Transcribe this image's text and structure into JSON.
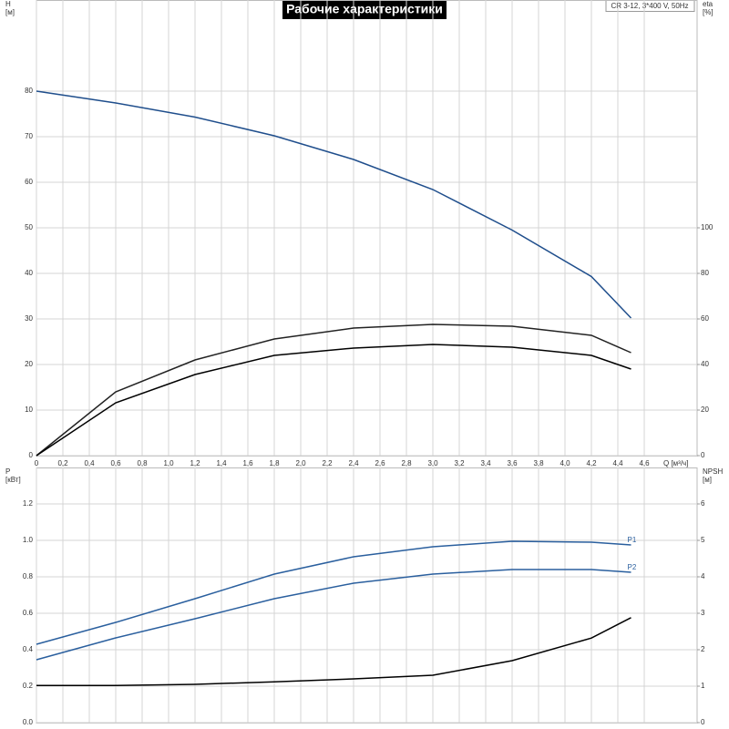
{
  "title": "Рабочие характеристики",
  "info": "CR 3-12, 3*400 V, 50Hz",
  "chart_data": [
    {
      "type": "line",
      "x_label": "Q [м³/ч]",
      "y_label": "H",
      "y_unit": "[м]",
      "y2_label": "eta",
      "y2_unit": "[%]",
      "x": [
        0,
        0.6,
        1.2,
        1.8,
        2.4,
        3.0,
        3.6,
        4.2,
        4.5
      ],
      "xlim": [
        0,
        5
      ],
      "xticks": [
        0,
        {
          "value": 0.2,
          "label": "0,2"
        },
        {
          "value": 0.4,
          "label": "0,4"
        },
        {
          "value": 0.6,
          "label": "0,6"
        },
        {
          "value": 0.8,
          "label": "0,8"
        },
        {
          "value": 1.0,
          "label": "1,0"
        },
        {
          "value": 1.2,
          "label": "1,2"
        },
        {
          "value": 1.4,
          "label": "1,4"
        },
        {
          "value": 1.6,
          "label": "1,6"
        },
        {
          "value": 1.8,
          "label": "1,8"
        },
        {
          "value": 2.0,
          "label": "2,0"
        },
        {
          "value": 2.2,
          "label": "2,2"
        },
        {
          "value": 2.4,
          "label": "2,4"
        },
        {
          "value": 2.6,
          "label": "2,6"
        },
        {
          "value": 2.8,
          "label": "2,8"
        },
        {
          "value": 3.0,
          "label": "3,0"
        },
        {
          "value": 3.2,
          "label": "3,2"
        },
        {
          "value": 3.4,
          "label": "3,4"
        },
        {
          "value": 3.6,
          "label": "3,6"
        },
        {
          "value": 3.8,
          "label": "3,8"
        },
        {
          "value": 4.0,
          "label": "4,0"
        },
        {
          "value": 4.2,
          "label": "4,2"
        },
        {
          "value": 4.4,
          "label": "4,4"
        },
        {
          "value": 4.6,
          "label": "4,6"
        }
      ],
      "ylim": [
        0,
        100
      ],
      "yticks": [
        0,
        10,
        20,
        30,
        40,
        50,
        60,
        70,
        80
      ],
      "y2lim": [
        0,
        200
      ],
      "y2ticks": [
        0,
        20,
        40,
        60,
        80,
        100
      ],
      "grid": true,
      "series": [
        {
          "color": "#1f4e8c",
          "values": [
            80,
            77.4,
            74.3,
            70.2,
            65,
            58.4,
            49.5,
            39.3,
            30.2
          ]
        },
        {
          "color": "#222222",
          "axis": "y2",
          "values": [
            0,
            28,
            42,
            51.2,
            56,
            57.6,
            56.8,
            52.8,
            45.2
          ]
        },
        {
          "color": "#000000",
          "axis": "y2",
          "values": [
            0,
            23.2,
            35.6,
            44,
            47.2,
            48.8,
            47.6,
            44,
            38
          ]
        }
      ]
    },
    {
      "type": "line",
      "y_label": "P",
      "y_unit": "[кВт]",
      "y2_label": "NPSH",
      "y2_unit": "[м]",
      "x": [
        0,
        0.6,
        1.2,
        1.8,
        2.4,
        3.0,
        3.6,
        4.2,
        4.5
      ],
      "xlim": [
        0,
        5
      ],
      "ylim": [
        0,
        1.4
      ],
      "yticks": [
        {
          "value": 0,
          "label": "0.0"
        },
        {
          "value": 0.2,
          "label": "0.2"
        },
        {
          "value": 0.4,
          "label": "0.4"
        },
        {
          "value": 0.6,
          "label": "0.6"
        },
        {
          "value": 0.8,
          "label": "0.8"
        },
        {
          "value": 1.0,
          "label": "1.0"
        },
        {
          "value": 1.2,
          "label": "1.2"
        }
      ],
      "y2lim": [
        0,
        7
      ],
      "y2ticks": [
        0,
        1,
        2,
        3,
        4,
        5,
        6
      ],
      "grid": true,
      "series": [
        {
          "name": "P1",
          "color": "#2a5f9e",
          "values": [
            0.43,
            0.55,
            0.68,
            0.815,
            0.91,
            0.965,
            0.995,
            0.99,
            0.975
          ]
        },
        {
          "name": "P2",
          "color": "#2a5f9e",
          "values": [
            0.345,
            0.465,
            0.57,
            0.68,
            0.765,
            0.815,
            0.84,
            0.84,
            0.825
          ]
        },
        {
          "color": "#000000",
          "axis": "y2",
          "values": [
            1.02,
            1.02,
            1.05,
            1.12,
            1.2,
            1.3,
            1.7,
            2.32,
            2.88
          ]
        }
      ]
    }
  ]
}
